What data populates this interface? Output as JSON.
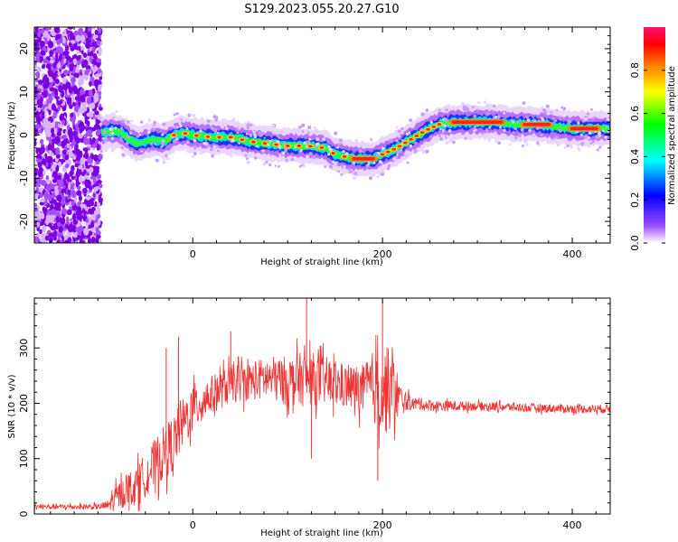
{
  "title": "S129.2023.055.20.27.G10",
  "chart_data": [
    {
      "type": "heatmap",
      "xlabel": "Height of straight line (km)",
      "ylabel": "Frequency (Hz)",
      "xlim": [
        -167,
        440
      ],
      "ylim": [
        -25,
        25
      ],
      "xticks": [
        0,
        200,
        400
      ],
      "yticks": [
        -20,
        -10,
        0,
        10,
        20
      ],
      "colorbar": {
        "label": "Normalized spectral amplitude",
        "range": [
          0,
          1
        ],
        "ticks": [
          "0.0",
          "0.2",
          "0.4",
          "0.6",
          "0.8"
        ],
        "stops": [
          "#ffffff",
          "#8a2be2",
          "#0000ff",
          "#00ffff",
          "#00ff00",
          "#ffff00",
          "#ff7f00",
          "#ff0000",
          "#ff1493"
        ]
      },
      "noise_region": {
        "x": [
          -167,
          -97
        ],
        "freq": [
          -25,
          25
        ]
      },
      "ridge": {
        "x": [
          -97,
          -85,
          -75,
          -60,
          -50,
          -40,
          -30,
          -20,
          -10,
          0,
          20,
          40,
          60,
          80,
          100,
          120,
          140,
          150,
          160,
          175,
          190,
          200,
          215,
          230,
          245,
          260,
          280,
          300,
          320,
          340,
          360,
          380,
          400,
          420,
          440
        ],
        "freq": [
          0.5,
          1,
          0.5,
          -2,
          -1.5,
          -1,
          -1.5,
          0,
          0.5,
          0,
          -0.5,
          -0.5,
          -1.5,
          -2,
          -2.5,
          -2.5,
          -3,
          -4.5,
          -5,
          -5.5,
          -5.5,
          -4.5,
          -3,
          -1,
          1,
          2.5,
          3,
          3,
          3,
          2.5,
          2.5,
          2,
          1.5,
          1.5,
          1.5
        ]
      }
    },
    {
      "type": "line",
      "xlabel": "Height of straight line (km)",
      "ylabel": "SNR (10 * v/v)",
      "xlim": [
        -167,
        440
      ],
      "ylim": [
        0,
        390
      ],
      "xticks": [
        0,
        200,
        400
      ],
      "yticks": [
        0,
        100,
        200,
        300
      ],
      "color": "#ee3333",
      "envelope": {
        "x": [
          -167,
          -100,
          -90,
          -80,
          -70,
          -60,
          -50,
          -40,
          -30,
          -20,
          -10,
          0,
          10,
          20,
          30,
          40,
          60,
          80,
          100,
          120,
          140,
          160,
          180,
          190,
          200,
          210,
          220,
          230,
          260,
          300,
          350,
          400,
          440
        ],
        "mean": [
          13,
          13,
          15,
          30,
          45,
          50,
          70,
          90,
          110,
          130,
          165,
          190,
          205,
          215,
          225,
          235,
          240,
          245,
          240,
          245,
          240,
          230,
          225,
          230,
          220,
          225,
          205,
          200,
          195,
          195,
          192,
          190,
          190
        ],
        "spread": [
          5,
          5,
          10,
          25,
          30,
          35,
          40,
          45,
          50,
          50,
          45,
          45,
          40,
          35,
          35,
          35,
          35,
          40,
          45,
          50,
          45,
          40,
          45,
          65,
          80,
          75,
          25,
          12,
          10,
          8,
          8,
          8,
          8
        ]
      },
      "spikes": [
        {
          "x": -28,
          "y": 300
        },
        {
          "x": 120,
          "y": 390
        },
        {
          "x": 200,
          "y": 385
        },
        {
          "x": 40,
          "y": 330
        },
        {
          "x": 195,
          "y": 60
        },
        {
          "x": 125,
          "y": 100
        },
        {
          "x": -15,
          "y": 320
        }
      ]
    }
  ]
}
